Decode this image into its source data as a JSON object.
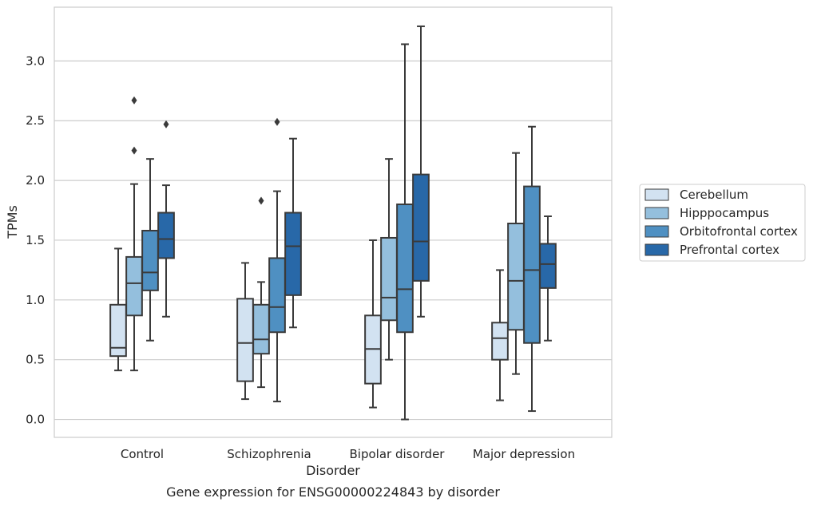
{
  "chart_data": {
    "type": "boxplot",
    "caption": "Gene expression for ENSG00000224843 by disorder",
    "xlabel": "Disorder",
    "ylabel": "TPMs",
    "ylim": [
      -0.15,
      3.45
    ],
    "yticks": [
      0.0,
      0.5,
      1.0,
      1.5,
      2.0,
      2.5,
      3.0
    ],
    "ytick_labels": [
      "0.0",
      "0.5",
      "1.0",
      "1.5",
      "2.0",
      "2.5",
      "3.0"
    ],
    "grid": "horizontal",
    "legend_position": "right",
    "categories": [
      "Control",
      "Schizophrenia",
      "Bipolar disorder",
      "Major depression"
    ],
    "series": [
      {
        "name": "Cerebellum",
        "color": "#d2e2f1",
        "boxes": [
          {
            "whisker_low": 0.41,
            "q1": 0.53,
            "median": 0.6,
            "q3": 0.96,
            "whisker_high": 1.43,
            "outliers": []
          },
          {
            "whisker_low": 0.17,
            "q1": 0.32,
            "median": 0.64,
            "q3": 1.01,
            "whisker_high": 1.31,
            "outliers": []
          },
          {
            "whisker_low": 0.1,
            "q1": 0.3,
            "median": 0.59,
            "q3": 0.87,
            "whisker_high": 1.5,
            "outliers": []
          },
          {
            "whisker_low": 0.16,
            "q1": 0.5,
            "median": 0.68,
            "q3": 0.81,
            "whisker_high": 1.25,
            "outliers": []
          }
        ]
      },
      {
        "name": "Hipppocampus",
        "color": "#94bfdd",
        "boxes": [
          {
            "whisker_low": 0.41,
            "q1": 0.87,
            "median": 1.14,
            "q3": 1.36,
            "whisker_high": 1.97,
            "outliers": [
              2.25,
              2.67
            ]
          },
          {
            "whisker_low": 0.27,
            "q1": 0.55,
            "median": 0.67,
            "q3": 0.96,
            "whisker_high": 1.15,
            "outliers": [
              1.83
            ]
          },
          {
            "whisker_low": 0.5,
            "q1": 0.83,
            "median": 1.02,
            "q3": 1.52,
            "whisker_high": 2.18,
            "outliers": []
          },
          {
            "whisker_low": 0.38,
            "q1": 0.75,
            "median": 1.16,
            "q3": 1.64,
            "whisker_high": 2.23,
            "outliers": []
          }
        ]
      },
      {
        "name": "Orbitofrontal cortex",
        "color": "#4f90c2",
        "boxes": [
          {
            "whisker_low": 0.66,
            "q1": 1.08,
            "median": 1.23,
            "q3": 1.58,
            "whisker_high": 2.18,
            "outliers": []
          },
          {
            "whisker_low": 0.15,
            "q1": 0.73,
            "median": 0.94,
            "q3": 1.35,
            "whisker_high": 1.91,
            "outliers": [
              2.49
            ]
          },
          {
            "whisker_low": 0.0,
            "q1": 0.73,
            "median": 1.09,
            "q3": 1.8,
            "whisker_high": 3.14,
            "outliers": []
          },
          {
            "whisker_low": 0.07,
            "q1": 0.64,
            "median": 1.25,
            "q3": 1.95,
            "whisker_high": 2.45,
            "outliers": []
          }
        ]
      },
      {
        "name": "Prefrontal cortex",
        "color": "#2868a8",
        "boxes": [
          {
            "whisker_low": 0.86,
            "q1": 1.35,
            "median": 1.51,
            "q3": 1.73,
            "whisker_high": 1.96,
            "outliers": [
              2.47
            ]
          },
          {
            "whisker_low": 0.77,
            "q1": 1.04,
            "median": 1.45,
            "q3": 1.73,
            "whisker_high": 2.35,
            "outliers": []
          },
          {
            "whisker_low": 0.86,
            "q1": 1.16,
            "median": 1.49,
            "q3": 2.05,
            "whisker_high": 3.29,
            "outliers": []
          },
          {
            "whisker_low": 0.66,
            "q1": 1.1,
            "median": 1.3,
            "q3": 1.47,
            "whisker_high": 1.7,
            "outliers": []
          }
        ]
      }
    ]
  }
}
